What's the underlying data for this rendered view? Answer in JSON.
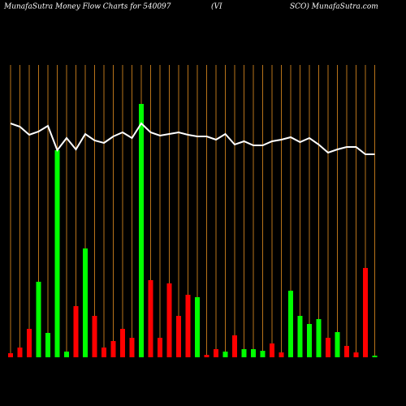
{
  "chart_data": {
    "type": "bar-line",
    "title_left": "MunafaSutra  Money Flow  Charts for 540097",
    "title_mid": "(VI",
    "title_right": "SCO) MunafaSutra.com",
    "values": [
      5,
      12,
      35,
      93,
      30,
      255,
      7,
      63,
      134,
      51,
      12,
      20,
      35,
      24,
      312,
      95,
      24,
      91,
      51,
      77,
      74,
      3,
      10,
      7,
      27,
      10,
      10,
      8,
      17,
      6,
      82,
      51,
      41,
      47,
      24,
      31,
      14,
      6,
      110,
      2
    ],
    "colors": [
      "#ff0000",
      "#ff0000",
      "#ff0000",
      "#00ff00",
      "#00ff00",
      "#00ff00",
      "#00ff00",
      "#ff0000",
      "#00ff00",
      "#ff0000",
      "#ff0000",
      "#ff0000",
      "#ff0000",
      "#ff0000",
      "#00ff00",
      "#ff0000",
      "#ff0000",
      "#ff0000",
      "#ff0000",
      "#ff0000",
      "#00ff00",
      "#ff0000",
      "#ff0000",
      "#00ff00",
      "#ff0000",
      "#00ff00",
      "#00ff00",
      "#00ff00",
      "#ff0000",
      "#ff0000",
      "#00ff00",
      "#00ff00",
      "#00ff00",
      "#00ff00",
      "#ff0000",
      "#00ff00",
      "#ff0000",
      "#ff0000",
      "#ff0000",
      "#00ff00"
    ],
    "line": {
      "color": "#ffffff",
      "values": [
        288,
        284,
        274,
        278,
        285,
        255,
        270,
        256,
        275,
        267,
        264,
        272,
        277,
        270,
        288,
        277,
        273,
        275,
        277,
        274,
        272,
        272,
        268,
        275,
        262,
        266,
        261,
        261,
        266,
        268,
        271,
        265,
        270,
        262,
        252,
        256,
        259,
        259,
        250,
        250
      ]
    },
    "ylim": [
      0,
      320
    ],
    "grid_color": "#b8731a"
  }
}
